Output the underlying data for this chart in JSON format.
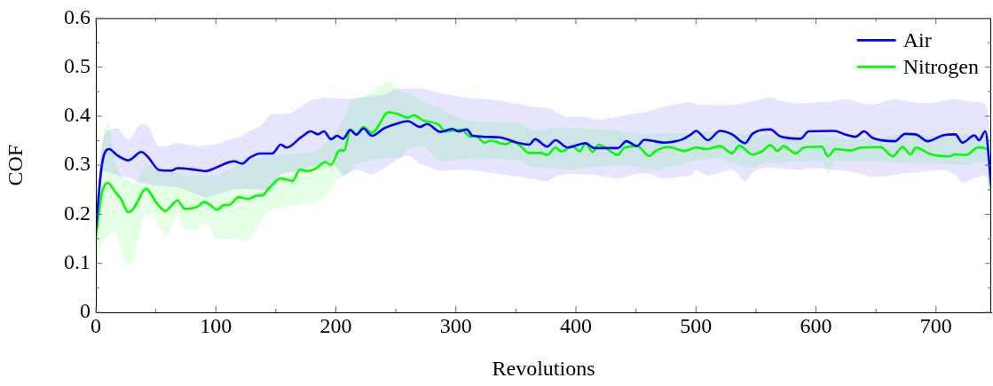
{
  "chart_data": {
    "type": "line",
    "xlabel": "Revolutions",
    "ylabel": "COF",
    "xlim": [
      0,
      746
    ],
    "ylim": [
      0,
      0.6
    ],
    "xticks": [
      0,
      {
        "value": 50,
        "label": null
      },
      100,
      {
        "value": 150,
        "label": null
      },
      200,
      {
        "value": 250,
        "label": null
      },
      300,
      {
        "value": 350,
        "label": null
      },
      400,
      {
        "value": 450,
        "label": null
      },
      500,
      {
        "value": 550,
        "label": null
      },
      600,
      {
        "value": 650,
        "label": null
      },
      700
    ],
    "yticks": [
      0,
      {
        "value": 0.05,
        "label": null
      },
      0.1,
      {
        "value": 0.15,
        "label": null
      },
      0.2,
      {
        "value": 0.25,
        "label": null
      },
      0.3,
      {
        "value": 0.35,
        "label": null
      },
      0.4,
      {
        "value": 0.45,
        "label": null
      },
      0.5,
      {
        "value": 0.55,
        "label": null
      },
      0.6
    ],
    "grid": false,
    "legend": "top right",
    "series": [
      {
        "name": "Air",
        "color": "#0000ff",
        "x": [
          0,
          5,
          11,
          18,
          27,
          38,
          43,
          53,
          63,
          68,
          85,
          92,
          100,
          115,
          122,
          128,
          137,
          147,
          154,
          159,
          171,
          179,
          185,
          190,
          196,
          201,
          206,
          212,
          217,
          223,
          230,
          240,
          250,
          260,
          270,
          276,
          287,
          297,
          302,
          309,
          314,
          336,
          351,
          361,
          366,
          376,
          383,
          393,
          408,
          415,
          435,
          442,
          451,
          457,
          474,
          489,
          496,
          500,
          510,
          520,
          530,
          541,
          547,
          562,
          570,
          587,
          594,
          615,
          624,
          633,
          640,
          647,
          666,
          674,
          683,
          693,
          706,
          716,
          722,
          732,
          736,
          741,
          746
        ],
        "values": [
          0.17,
          0.3,
          0.333,
          0.32,
          0.31,
          0.327,
          0.318,
          0.29,
          0.289,
          0.294,
          0.29,
          0.288,
          0.295,
          0.308,
          0.303,
          0.315,
          0.324,
          0.324,
          0.342,
          0.336,
          0.357,
          0.369,
          0.363,
          0.369,
          0.353,
          0.36,
          0.354,
          0.372,
          0.362,
          0.375,
          0.36,
          0.375,
          0.384,
          0.39,
          0.378,
          0.384,
          0.368,
          0.374,
          0.369,
          0.373,
          0.36,
          0.357,
          0.346,
          0.342,
          0.353,
          0.338,
          0.351,
          0.336,
          0.345,
          0.335,
          0.335,
          0.349,
          0.339,
          0.352,
          0.346,
          0.353,
          0.363,
          0.37,
          0.351,
          0.37,
          0.363,
          0.345,
          0.364,
          0.373,
          0.359,
          0.354,
          0.369,
          0.37,
          0.363,
          0.358,
          0.369,
          0.356,
          0.349,
          0.364,
          0.363,
          0.349,
          0.361,
          0.363,
          0.346,
          0.361,
          0.351,
          0.369,
          0.26
        ],
        "lower": [
          0.15,
          0.288,
          0.285,
          0.279,
          0.275,
          0.264,
          0.262,
          0.258,
          0.256,
          0.255,
          0.24,
          0.234,
          0.24,
          0.25,
          0.252,
          0.251,
          0.25,
          0.25,
          0.282,
          0.285,
          0.29,
          0.297,
          0.3,
          0.305,
          0.309,
          0.295,
          0.279,
          0.285,
          0.291,
          0.287,
          0.282,
          0.294,
          0.31,
          0.32,
          0.303,
          0.298,
          0.288,
          0.29,
          0.29,
          0.291,
          0.29,
          0.282,
          0.277,
          0.273,
          0.271,
          0.267,
          0.277,
          0.282,
          0.282,
          0.28,
          0.273,
          0.277,
          0.282,
          0.284,
          0.273,
          0.277,
          0.279,
          0.29,
          0.279,
          0.285,
          0.291,
          0.267,
          0.285,
          0.295,
          0.293,
          0.291,
          0.294,
          0.291,
          0.289,
          0.285,
          0.28,
          0.276,
          0.28,
          0.284,
          0.285,
          0.288,
          0.29,
          0.28,
          0.264,
          0.273,
          0.276,
          0.279,
          0.225
        ],
        "upper": [
          0.2,
          0.34,
          0.372,
          0.375,
          0.352,
          0.384,
          0.38,
          0.338,
          0.342,
          0.345,
          0.339,
          0.341,
          0.343,
          0.355,
          0.36,
          0.37,
          0.38,
          0.405,
          0.405,
          0.405,
          0.42,
          0.432,
          0.435,
          0.438,
          0.437,
          0.436,
          0.436,
          0.435,
          0.437,
          0.439,
          0.441,
          0.444,
          0.455,
          0.456,
          0.457,
          0.454,
          0.447,
          0.443,
          0.44,
          0.438,
          0.437,
          0.432,
          0.425,
          0.42,
          0.419,
          0.417,
          0.41,
          0.399,
          0.399,
          0.393,
          0.399,
          0.402,
          0.406,
          0.408,
          0.42,
          0.427,
          0.429,
          0.425,
          0.423,
          0.423,
          0.423,
          0.428,
          0.43,
          0.438,
          0.432,
          0.426,
          0.427,
          0.431,
          0.435,
          0.43,
          0.425,
          0.424,
          0.435,
          0.431,
          0.428,
          0.427,
          0.431,
          0.435,
          0.432,
          0.429,
          0.428,
          0.426,
          0.351
        ]
      },
      {
        "name": "Nitrogen",
        "color": "#00ff00",
        "x": [
          0,
          5,
          10,
          16,
          21,
          27,
          31,
          42,
          50,
          58,
          68,
          74,
          85,
          90,
          95,
          101,
          107,
          111,
          119,
          127,
          134,
          138,
          145,
          154,
          164,
          170,
          176,
          183,
          191,
          196,
          203,
          207,
          212,
          217,
          223,
          230,
          244,
          252,
          260,
          265,
          272,
          286,
          291,
          305,
          312,
          316,
          324,
          329,
          341,
          347,
          353,
          361,
          371,
          376,
          383,
          388,
          397,
          403,
          408,
          414,
          419,
          425,
          435,
          440,
          451,
          461,
          467,
          477,
          491,
          500,
          509,
          520,
          530,
          536,
          547,
          555,
          562,
          568,
          573,
          583,
          590,
          605,
          610,
          616,
          629,
          637,
          654,
          664,
          672,
          679,
          683,
          696,
          711,
          716,
          725,
          735,
          743,
          746
        ],
        "values": [
          0.153,
          0.243,
          0.264,
          0.246,
          0.231,
          0.204,
          0.21,
          0.252,
          0.225,
          0.207,
          0.228,
          0.211,
          0.216,
          0.225,
          0.219,
          0.209,
          0.219,
          0.219,
          0.235,
          0.231,
          0.238,
          0.238,
          0.255,
          0.273,
          0.268,
          0.291,
          0.288,
          0.293,
          0.306,
          0.301,
          0.33,
          0.33,
          0.372,
          0.363,
          0.378,
          0.366,
          0.408,
          0.404,
          0.397,
          0.402,
          0.392,
          0.382,
          0.369,
          0.372,
          0.358,
          0.36,
          0.346,
          0.35,
          0.343,
          0.348,
          0.341,
          0.325,
          0.325,
          0.321,
          0.336,
          0.328,
          0.339,
          0.328,
          0.344,
          0.327,
          0.342,
          0.335,
          0.321,
          0.335,
          0.339,
          0.319,
          0.33,
          0.337,
          0.329,
          0.336,
          0.333,
          0.339,
          0.324,
          0.34,
          0.322,
          0.328,
          0.341,
          0.329,
          0.339,
          0.324,
          0.336,
          0.338,
          0.318,
          0.333,
          0.33,
          0.336,
          0.337,
          0.318,
          0.337,
          0.322,
          0.336,
          0.322,
          0.318,
          0.322,
          0.321,
          0.336,
          0.333,
          0.25
        ],
        "lower": [
          0.093,
          0.14,
          0.155,
          0.165,
          0.13,
          0.096,
          0.11,
          0.2,
          0.19,
          0.156,
          0.195,
          0.17,
          0.17,
          0.183,
          0.17,
          0.147,
          0.149,
          0.15,
          0.149,
          0.147,
          0.17,
          0.185,
          0.207,
          0.212,
          0.219,
          0.22,
          0.221,
          0.225,
          0.24,
          0.252,
          0.275,
          0.279,
          0.29,
          0.303,
          0.306,
          0.31,
          0.315,
          0.315,
          0.33,
          0.335,
          0.339,
          0.31,
          0.309,
          0.312,
          0.313,
          0.314,
          0.315,
          0.314,
          0.312,
          0.311,
          0.31,
          0.3,
          0.295,
          0.294,
          0.293,
          0.292,
          0.291,
          0.293,
          0.295,
          0.296,
          0.297,
          0.298,
          0.299,
          0.3,
          0.296,
          0.292,
          0.29,
          0.295,
          0.303,
          0.309,
          0.311,
          0.314,
          0.304,
          0.3,
          0.294,
          0.303,
          0.304,
          0.305,
          0.306,
          0.307,
          0.307,
          0.309,
          0.279,
          0.309,
          0.309,
          0.309,
          0.309,
          0.306,
          0.304,
          0.303,
          0.303,
          0.303,
          0.302,
          0.301,
          0.3,
          0.305,
          0.308,
          0.249
        ],
        "upper": [
          0.2,
          0.33,
          0.387,
          0.31,
          0.28,
          0.27,
          0.262,
          0.3,
          0.29,
          0.285,
          0.285,
          0.28,
          0.28,
          0.28,
          0.28,
          0.28,
          0.285,
          0.29,
          0.3,
          0.31,
          0.315,
          0.316,
          0.318,
          0.321,
          0.323,
          0.325,
          0.326,
          0.33,
          0.345,
          0.355,
          0.38,
          0.4,
          0.429,
          0.435,
          0.442,
          0.45,
          0.471,
          0.455,
          0.447,
          0.44,
          0.43,
          0.418,
          0.41,
          0.395,
          0.39,
          0.389,
          0.388,
          0.387,
          0.387,
          0.387,
          0.387,
          0.375,
          0.371,
          0.373,
          0.377,
          0.377,
          0.376,
          0.376,
          0.375,
          0.374,
          0.373,
          0.373,
          0.372,
          0.368,
          0.365,
          0.363,
          0.364,
          0.366,
          0.365,
          0.366,
          0.369,
          0.366,
          0.363,
          0.363,
          0.363,
          0.363,
          0.361,
          0.36,
          0.359,
          0.358,
          0.36,
          0.363,
          0.36,
          0.357,
          0.351,
          0.353,
          0.357,
          0.361,
          0.364,
          0.366,
          0.364,
          0.359,
          0.359,
          0.361,
          0.363,
          0.36,
          0.357,
          0.3
        ]
      }
    ]
  }
}
